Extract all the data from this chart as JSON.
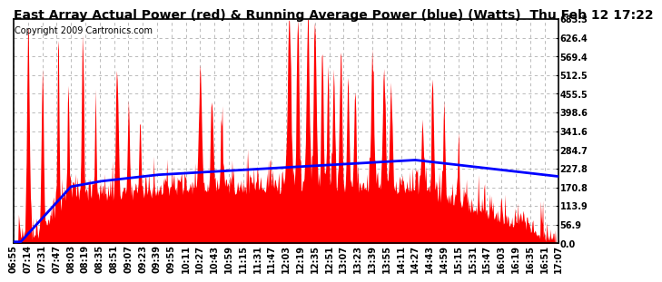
{
  "title": "East Array Actual Power (red) & Running Average Power (blue) (Watts)  Thu Feb 12 17:22",
  "copyright": "Copyright 2009 Cartronics.com",
  "ylim": [
    0.0,
    683.3
  ],
  "yticks": [
    0.0,
    56.9,
    113.9,
    170.8,
    227.8,
    284.7,
    341.6,
    398.6,
    455.5,
    512.5,
    569.4,
    626.4,
    683.3
  ],
  "xtick_labels": [
    "06:55",
    "07:14",
    "07:31",
    "07:47",
    "08:03",
    "08:19",
    "08:35",
    "08:51",
    "09:07",
    "09:23",
    "09:39",
    "09:55",
    "10:11",
    "10:27",
    "10:43",
    "10:59",
    "11:15",
    "11:31",
    "11:47",
    "12:03",
    "12:19",
    "12:35",
    "12:51",
    "13:07",
    "13:23",
    "13:39",
    "13:55",
    "14:11",
    "14:27",
    "14:43",
    "14:59",
    "15:15",
    "15:31",
    "15:47",
    "16:03",
    "16:19",
    "16:35",
    "16:51",
    "17:07"
  ],
  "background_color": "#ffffff",
  "plot_bg_color": "#ffffff",
  "grid_color": "#b0b0b0",
  "red_color": "#ff0000",
  "blue_color": "#0000ff",
  "title_fontsize": 10,
  "tick_fontsize": 7,
  "copyright_fontsize": 7
}
